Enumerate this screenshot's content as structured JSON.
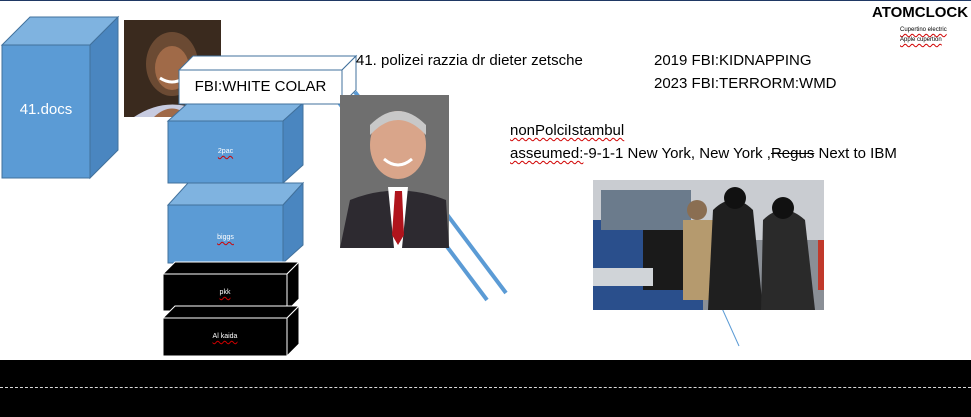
{
  "brand": {
    "title": "ATOMCLOCK",
    "sub1": "Cupertino electric",
    "sub2": "Apple cupertion"
  },
  "cubes": {
    "docs": "41.docs",
    "c1": "2pac",
    "c2": "biggs",
    "c3": "pkk",
    "c4": "Al kaida"
  },
  "callout": "FBI:WHITE COLAR",
  "headline": "41. polizei razzia dr dieter zetsche",
  "fbi": {
    "line1": "2019 FBI:KIDNAPPING",
    "line2": "2023 FBI:TERRORM:WMD"
  },
  "location": {
    "title": "nonPolciIstambul",
    "label": "asseumed:",
    "prefix": "-9-1-1 New York, New York ,",
    "struck": "Regus",
    "suffix": " Next to IBM"
  },
  "colors": {
    "cube_blue": "#5b9bd5",
    "cube_black": "#000000",
    "line_blue": "#5b9bd5",
    "squiggle_red": "#d00000"
  }
}
